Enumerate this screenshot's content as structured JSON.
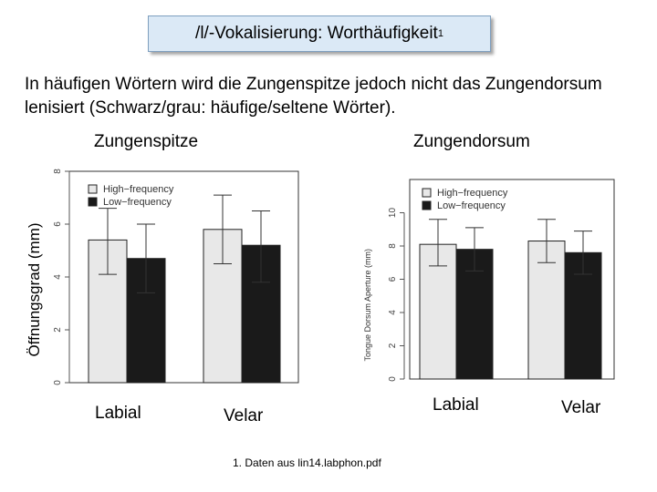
{
  "slide": {
    "title": "/l/-Vokalisierung:  Worthäufigkeit",
    "title_sup": "1",
    "description": "In häufigen Wörtern wird die Zungenspitze jedoch nicht das Zungendorsum lenisiert (Schwarz/grau: häufige/seltene Wörter).",
    "y_axis_label": "Öffnungsgrad (mm)",
    "footnote": "1. Daten aus  lin14.labphon.pdf"
  },
  "colors": {
    "high": "#e8e8e8",
    "low": "#1a1a1a",
    "title_box": "#dbe9f6"
  },
  "chart_data": [
    {
      "type": "bar",
      "title": "Zungenspitze",
      "categories": [
        "Labial",
        "Velar"
      ],
      "ylabel": "",
      "ylim": [
        0,
        8
      ],
      "yticks": [
        "0",
        "2",
        "4",
        "6",
        "8"
      ],
      "legend": "top-left",
      "series": [
        {
          "name": "High−frequency",
          "values": [
            5.4,
            5.8
          ],
          "err_low": [
            4.1,
            4.5
          ],
          "err_high": [
            6.6,
            7.1
          ]
        },
        {
          "name": "Low−frequency",
          "values": [
            4.7,
            5.2
          ],
          "err_low": [
            3.4,
            3.8
          ],
          "err_high": [
            6.0,
            6.5
          ]
        }
      ]
    },
    {
      "type": "bar",
      "title": "Zungendorsum",
      "categories": [
        "Labial",
        "Velar"
      ],
      "ylabel": "Tongue Dorsum Aperture (mm)",
      "ylim": [
        0,
        12
      ],
      "yticks": [
        "0",
        "2",
        "4",
        "6",
        "8",
        "10"
      ],
      "legend": "top-left",
      "series": [
        {
          "name": "High−frequency",
          "values": [
            8.1,
            8.3
          ],
          "err_low": [
            6.8,
            7.0
          ],
          "err_high": [
            9.6,
            9.6
          ]
        },
        {
          "name": "Low−frequency",
          "values": [
            7.8,
            7.6
          ],
          "err_low": [
            6.5,
            6.3
          ],
          "err_high": [
            9.1,
            8.9
          ]
        }
      ]
    }
  ]
}
